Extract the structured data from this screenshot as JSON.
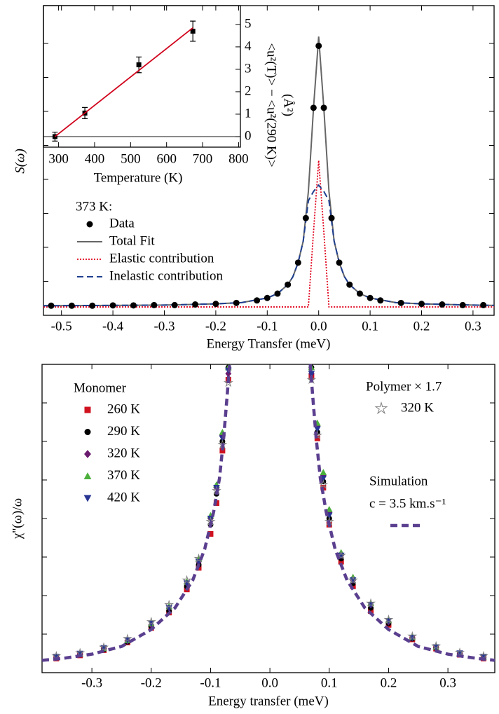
{
  "chart_data": [
    {
      "type": "line",
      "xlabel": "Energy Transfer (meV)",
      "ylabel": "S(ω)",
      "xlim": [
        -0.535,
        0.341
      ],
      "ylim": [
        0,
        100
      ],
      "xticks": [
        -0.5,
        -0.4,
        -0.3,
        -0.2,
        -0.1,
        {
          "value": 0,
          "label": "0.0"
        },
        0.1,
        0.2,
        0.3
      ],
      "legend_title": "373 K:",
      "series": [
        {
          "name": "Data",
          "color": "#000000",
          "marker": "circle",
          "x": [
            -0.52,
            -0.48,
            -0.44,
            -0.4,
            -0.36,
            -0.32,
            -0.28,
            -0.24,
            -0.2,
            -0.16,
            -0.12,
            -0.1,
            -0.08,
            -0.06,
            -0.04,
            -0.025,
            -0.01,
            0,
            0.01,
            0.025,
            0.04,
            0.06,
            0.08,
            0.1,
            0.12,
            0.16,
            0.2,
            0.24,
            0.28,
            0.32
          ],
          "values": [
            3.1,
            3.1,
            3.1,
            3.2,
            3.2,
            3.3,
            3.3,
            3.5,
            3.7,
            4.0,
            4.8,
            5.6,
            7.0,
            9.9,
            17,
            31.4,
            67,
            87,
            67,
            31.4,
            17,
            9.9,
            7.0,
            5.6,
            4.8,
            4.0,
            3.7,
            3.5,
            3.3,
            3.3
          ]
        },
        {
          "name": "Total Fit",
          "color": "#666666",
          "line": "solid",
          "x": [
            -0.535,
            -0.4,
            -0.3,
            -0.2,
            -0.15,
            -0.1,
            -0.08,
            -0.06,
            -0.05,
            -0.04,
            -0.03,
            -0.02,
            -0.01,
            0,
            0.01,
            0.02,
            0.03,
            0.04,
            0.05,
            0.06,
            0.08,
            0.1,
            0.15,
            0.2,
            0.3,
            0.341
          ],
          "values": [
            3.1,
            3.2,
            3.3,
            3.7,
            4.1,
            5.6,
            7.0,
            9.9,
            12.5,
            17,
            24,
            40,
            67,
            90,
            67,
            40,
            24,
            17,
            12.5,
            9.9,
            7.0,
            5.6,
            4.1,
            3.7,
            3.3,
            3.2
          ]
        },
        {
          "name": "Elastic contribution",
          "color": "#e0001b",
          "line": "dotted",
          "x": [
            -0.535,
            -0.4,
            -0.3,
            -0.2,
            -0.15,
            -0.1,
            -0.08,
            -0.06,
            -0.05,
            -0.04,
            -0.03,
            -0.02,
            -0.01,
            0,
            0.01,
            0.02,
            0.03,
            0.04,
            0.05,
            0.06,
            0.08,
            0.1,
            0.15,
            0.2,
            0.3,
            0.341
          ],
          "values": [
            2.7,
            2.7,
            2.7,
            2.7,
            2.7,
            2.7,
            2.7,
            2.7,
            2.7,
            2.7,
            2.7,
            2.7,
            27,
            50,
            27,
            2.7,
            2.7,
            2.7,
            2.7,
            2.7,
            2.7,
            2.7,
            2.7,
            2.7,
            2.7,
            2.7
          ]
        },
        {
          "name": "Inelastic contribution",
          "color": "#1f3f8f",
          "line": "dashed",
          "x": [
            -0.535,
            -0.4,
            -0.3,
            -0.2,
            -0.15,
            -0.1,
            -0.08,
            -0.06,
            -0.05,
            -0.04,
            -0.03,
            -0.02,
            -0.01,
            0,
            0.01,
            0.02,
            0.03,
            0.04,
            0.05,
            0.06,
            0.08,
            0.1,
            0.15,
            0.2,
            0.3,
            0.341
          ],
          "values": [
            3.1,
            3.2,
            3.3,
            3.7,
            4.1,
            5.6,
            7.0,
            9.9,
            12.5,
            17,
            24,
            37,
            40,
            42,
            40,
            37,
            24,
            17,
            12.5,
            9.9,
            7.0,
            5.6,
            4.1,
            3.7,
            3.3,
            3.2
          ]
        }
      ]
    },
    {
      "type": "inset",
      "xlabel": "Temperature (K)",
      "ylabel": "<u²(T)> − <u²(290 K)>",
      "yunit": "(Å²)",
      "xlim": [
        258,
        805
      ],
      "ylim": [
        -0.47,
        5.84
      ],
      "xticks": [
        300,
        400,
        500,
        600,
        700,
        800
      ],
      "yticks": [
        0,
        1,
        2,
        3,
        4,
        5
      ],
      "reference_line": 0,
      "series": [
        {
          "color": "#000000",
          "marker": "square",
          "x": [
            290,
            373,
            523,
            673
          ],
          "values": [
            0.0,
            1.05,
            3.2,
            4.7
          ],
          "errors": [
            0.2,
            0.25,
            0.35,
            0.45
          ]
        },
        {
          "color": "#d0021b",
          "line": "solid",
          "x": [
            290,
            673
          ],
          "values": [
            0.0,
            4.85
          ]
        }
      ]
    },
    {
      "type": "scatter",
      "xlabel": "Energy transfer (meV)",
      "ylabel": "χ''(ω)/ω",
      "xlim": [
        -0.384,
        0.379
      ],
      "ylim": [
        0,
        100
      ],
      "xticks": [
        -0.3,
        -0.2,
        -0.1,
        {
          "value": 0,
          "label": "0.0"
        },
        0.1,
        0.2,
        0.3
      ],
      "legend_groups": [
        "Monomer",
        "Polymer × 1.7",
        "Simulation"
      ],
      "series": [
        {
          "name": "260 K",
          "group": 0,
          "color": "#d0121f",
          "marker": "square",
          "x": [
            -0.36,
            -0.32,
            -0.28,
            -0.24,
            -0.2,
            -0.17,
            -0.14,
            -0.12,
            -0.1,
            -0.09,
            -0.08,
            -0.07,
            0.07,
            0.08,
            0.09,
            0.1,
            0.12,
            0.14,
            0.17,
            0.2,
            0.24,
            0.28,
            0.32,
            0.36
          ],
          "values": [
            4.6,
            5.6,
            7.3,
            9.8,
            14.5,
            19.5,
            27,
            34,
            45,
            55,
            72,
            95,
            96,
            76,
            60,
            48,
            36,
            28,
            20,
            15.5,
            10.8,
            7.8,
            5.8,
            4.6
          ]
        },
        {
          "name": "290 K",
          "group": 0,
          "color": "#000000",
          "marker": "circle",
          "x": [
            -0.36,
            -0.32,
            -0.28,
            -0.24,
            -0.2,
            -0.17,
            -0.14,
            -0.12,
            -0.1,
            -0.09,
            -0.08,
            -0.07,
            0.07,
            0.08,
            0.09,
            0.1,
            0.12,
            0.14,
            0.17,
            0.2,
            0.24,
            0.28,
            0.32,
            0.36
          ],
          "values": [
            4.8,
            5.8,
            7.5,
            10,
            15,
            20,
            28,
            35,
            48,
            58,
            75,
            99,
            99,
            78,
            62,
            50,
            37,
            29,
            21,
            16,
            11,
            8,
            6,
            4.8
          ]
        },
        {
          "name": "320 K",
          "group": 0,
          "color": "#6a1b6e",
          "marker": "diamond",
          "x": [
            -0.36,
            -0.32,
            -0.28,
            -0.24,
            -0.2,
            -0.17,
            -0.14,
            -0.12,
            -0.1,
            -0.09,
            -0.08,
            -0.07,
            0.07,
            0.08,
            0.09,
            0.1,
            0.12,
            0.14,
            0.17,
            0.2,
            0.24,
            0.28,
            0.32,
            0.36
          ],
          "values": [
            5,
            6,
            7.8,
            10.3,
            15.5,
            21,
            29,
            36,
            50,
            60,
            77,
            97,
            97,
            80,
            64,
            52,
            38,
            30,
            22,
            16.5,
            11.3,
            8.2,
            6.2,
            5
          ]
        },
        {
          "name": "370 K",
          "group": 0,
          "color": "#4caf3c",
          "marker": "triangle-up",
          "x": [
            -0.36,
            -0.32,
            -0.28,
            -0.24,
            -0.2,
            -0.17,
            -0.14,
            -0.12,
            -0.1,
            -0.09,
            -0.08,
            -0.07,
            0.07,
            0.08,
            0.09,
            0.1,
            0.12,
            0.14,
            0.17,
            0.2,
            0.24,
            0.28,
            0.32,
            0.36
          ],
          "values": [
            5.1,
            6.1,
            7.9,
            10.5,
            16,
            21.5,
            29.5,
            37,
            51,
            61,
            78,
            99,
            99,
            81,
            65,
            53,
            39,
            31,
            22.5,
            17,
            11.5,
            8.4,
            6.3,
            5.1
          ]
        },
        {
          "name": "420 K",
          "group": 0,
          "color": "#283593",
          "marker": "triangle-down",
          "x": [
            -0.36,
            -0.32,
            -0.28,
            -0.24,
            -0.2,
            -0.17,
            -0.14,
            -0.12,
            -0.1,
            -0.09,
            -0.08,
            -0.07,
            0.07,
            0.08,
            0.09,
            0.1,
            0.12,
            0.14,
            0.17,
            0.2,
            0.24,
            0.28,
            0.32,
            0.36
          ],
          "values": [
            5.2,
            6.2,
            8,
            10.6,
            16,
            21,
            29,
            36,
            50,
            60,
            76,
            98,
            97,
            79,
            63,
            51,
            38,
            30,
            22,
            16.8,
            11.4,
            8.3,
            6.3,
            5.2
          ]
        },
        {
          "name": "320 K",
          "group": 1,
          "color": "#808080",
          "marker": "star",
          "x": [
            -0.36,
            -0.32,
            -0.28,
            -0.24,
            -0.2,
            -0.17,
            -0.14,
            -0.12,
            -0.1,
            -0.09,
            -0.08,
            -0.07,
            0.07,
            0.08,
            0.09,
            0.1,
            0.12,
            0.14,
            0.17,
            0.2,
            0.24,
            0.28,
            0.32,
            0.36
          ],
          "values": [
            5.4,
            6.4,
            8.2,
            11,
            16.5,
            22,
            30,
            37,
            49,
            59,
            74,
            94,
            95,
            77,
            61,
            49,
            38,
            30,
            22.5,
            17.2,
            11.8,
            8.6,
            6.5,
            5.4
          ]
        },
        {
          "name": "c = 3.5 km.s⁻¹",
          "group": 2,
          "color": "#5b3f8f",
          "line": "dashed",
          "x": [
            -0.384,
            -0.35,
            -0.3,
            -0.25,
            -0.2,
            -0.16,
            -0.13,
            -0.11,
            -0.095,
            -0.085,
            -0.078,
            -0.072,
            -0.068,
            null,
            0.068,
            0.072,
            0.078,
            0.085,
            0.095,
            0.11,
            0.13,
            0.16,
            0.2,
            0.25,
            0.3,
            0.35,
            0.379
          ],
          "values": [
            4.0,
            4.6,
            6,
            8.5,
            14,
            21,
            30,
            40,
            52,
            63,
            76,
            90,
            100,
            null,
            100,
            90,
            76,
            63,
            52,
            40,
            30,
            21,
            14,
            8.5,
            6,
            4.6,
            4.0
          ]
        }
      ]
    }
  ]
}
